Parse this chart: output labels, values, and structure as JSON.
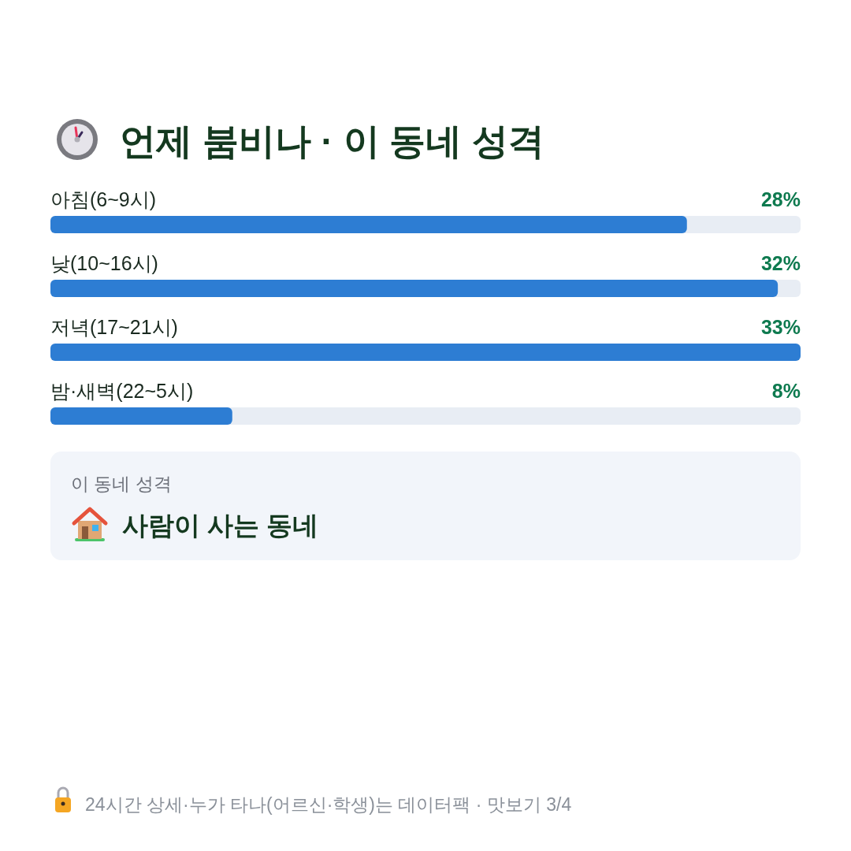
{
  "chart_data": {
    "type": "bar",
    "orientation": "horizontal",
    "title": "언제 붐비나 · 이 동네 성격",
    "categories": [
      "아침(6~9시)",
      "낮(10~16시)",
      "저녁(17~21시)",
      "밤·새벽(22~5시)"
    ],
    "values": [
      28,
      32,
      33,
      8
    ],
    "value_labels": [
      "28%",
      "32%",
      "33%",
      "8%"
    ],
    "color": "#2d7dd3",
    "xlim": [
      0,
      33
    ],
    "tick_labels": "y",
    "annotations": [
      "이 동네 성격",
      "사람이 사는 동네",
      "24시간 상세·누가 타나(어르신·학생)는 데이터팩 · 맛보기 3/4"
    ]
  }
}
